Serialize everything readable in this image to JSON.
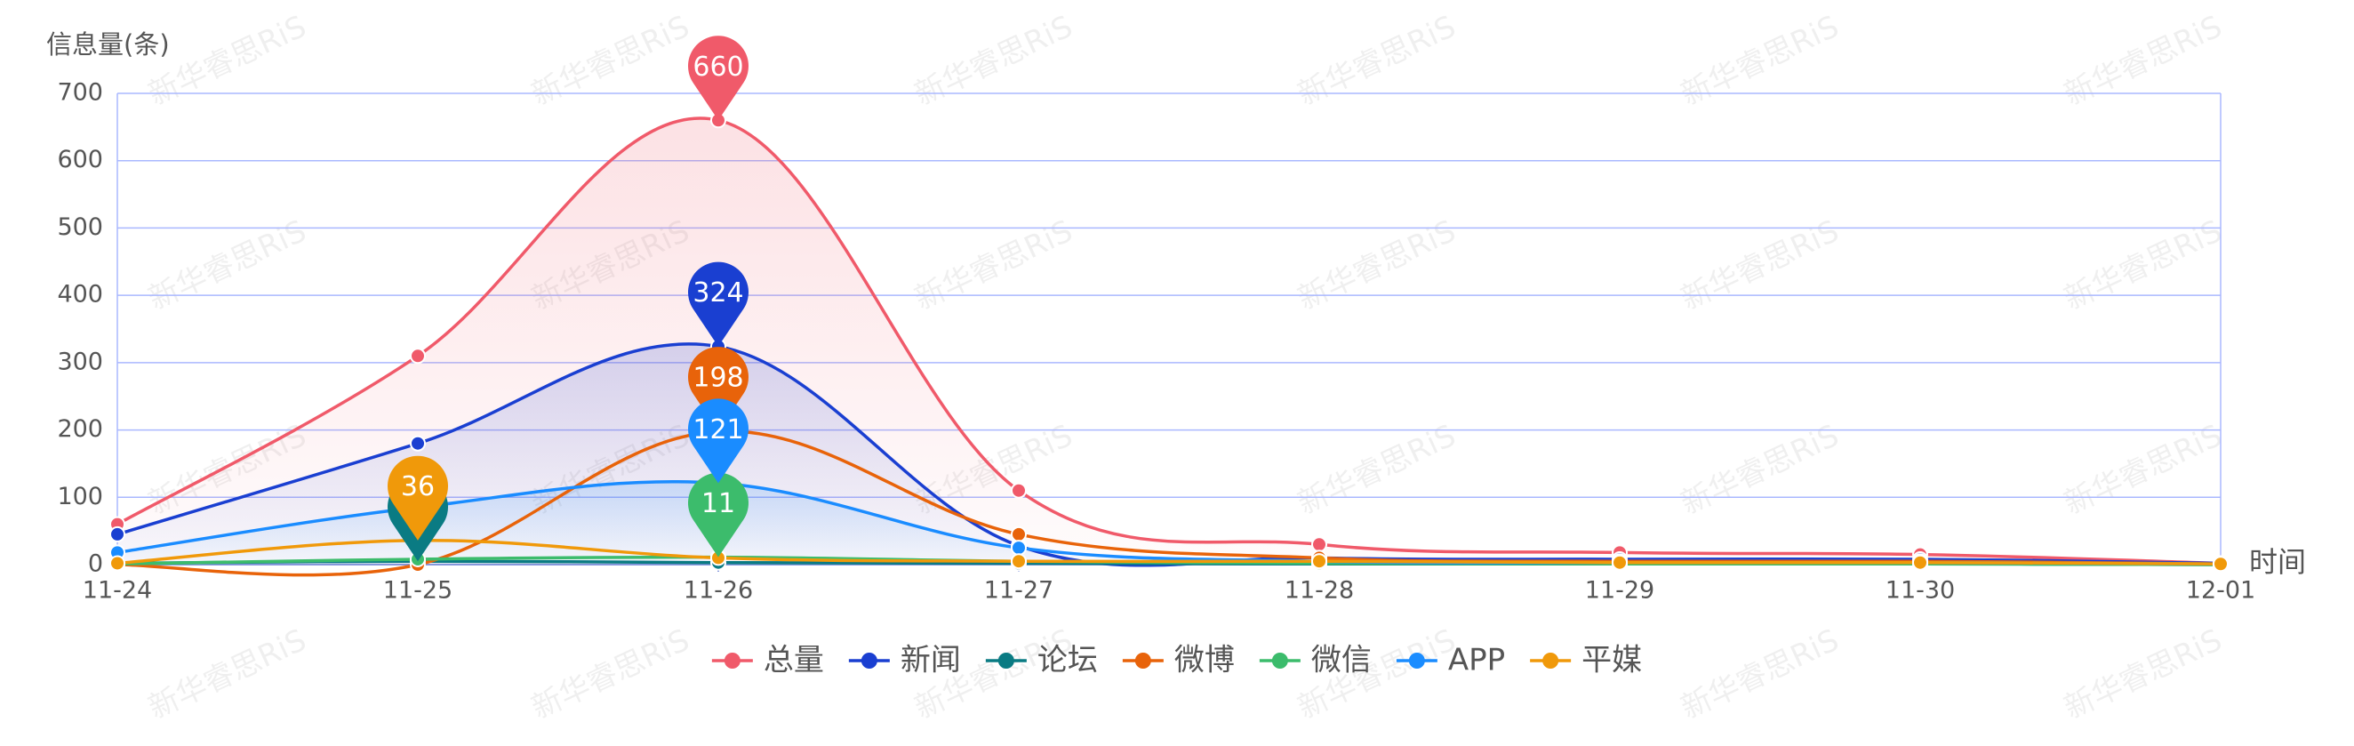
{
  "chart_data": {
    "type": "line",
    "y_axis_name": "信息量(条)",
    "x_axis_name": "时间",
    "watermark": "新华睿思RiS",
    "categories": [
      "11-24",
      "11-25",
      "11-26",
      "11-27",
      "11-28",
      "11-29",
      "11-30",
      "12-01"
    ],
    "ylim": [
      0,
      700
    ],
    "yticks": [
      0,
      100,
      200,
      300,
      400,
      500,
      600,
      700
    ],
    "grid": true,
    "smooth": true,
    "legend": "bottom",
    "series": [
      {
        "name": "总量",
        "color": "#f05a6a",
        "area": true,
        "show_max_label": true,
        "values": [
          60,
          310,
          660,
          110,
          30,
          18,
          15,
          2
        ]
      },
      {
        "name": "新闻",
        "color": "#1a3fd1",
        "area": true,
        "show_max_label": true,
        "values": [
          45,
          180,
          324,
          28,
          10,
          8,
          8,
          2
        ]
      },
      {
        "name": "论坛",
        "color": "#0a7b83",
        "area": false,
        "show_max_label": false,
        "values": [
          2,
          5,
          3,
          2,
          1,
          1,
          1,
          0
        ]
      },
      {
        "name": "微博",
        "color": "#e8630a",
        "area": false,
        "show_max_label": true,
        "values": [
          0,
          0,
          198,
          45,
          10,
          5,
          5,
          1
        ]
      },
      {
        "name": "微信",
        "color": "#3cbc6c",
        "area": false,
        "show_max_label": true,
        "values": [
          1,
          8,
          11,
          5,
          2,
          1,
          1,
          0
        ]
      },
      {
        "name": "APP",
        "color": "#1a8cff",
        "area": true,
        "show_max_label": true,
        "values": [
          18,
          85,
          121,
          25,
          5,
          3,
          3,
          1
        ]
      },
      {
        "name": "平媒",
        "color": "#f0990a",
        "area": false,
        "show_max_label": true,
        "values": [
          2,
          36,
          10,
          5,
          5,
          3,
          3,
          1
        ]
      }
    ]
  }
}
